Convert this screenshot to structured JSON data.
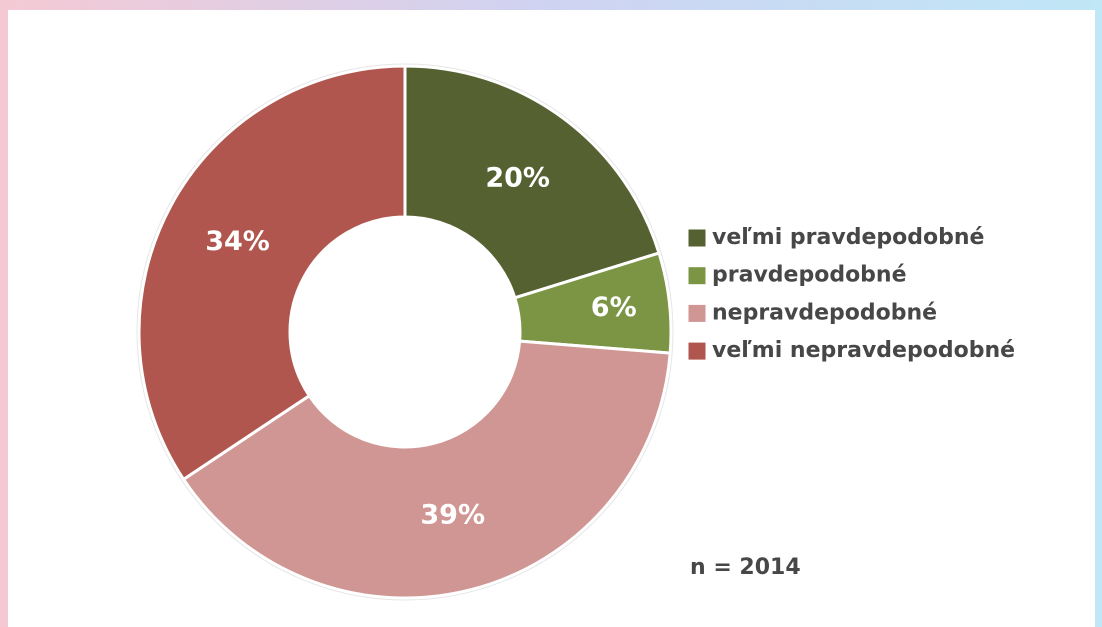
{
  "chart_data": {
    "type": "donut",
    "categories": [
      "veľmi pravdepodobné",
      "pravdepodobné",
      "nepravdepodobné",
      "veľmi nepravdepodobné"
    ],
    "values": [
      20,
      6,
      39,
      34
    ],
    "value_labels": [
      "20%",
      "6%",
      "39%",
      "34%"
    ],
    "colors": [
      "#556130",
      "#7b9545",
      "#d09694",
      "#b0564e"
    ],
    "annotation": "n = 2014"
  }
}
